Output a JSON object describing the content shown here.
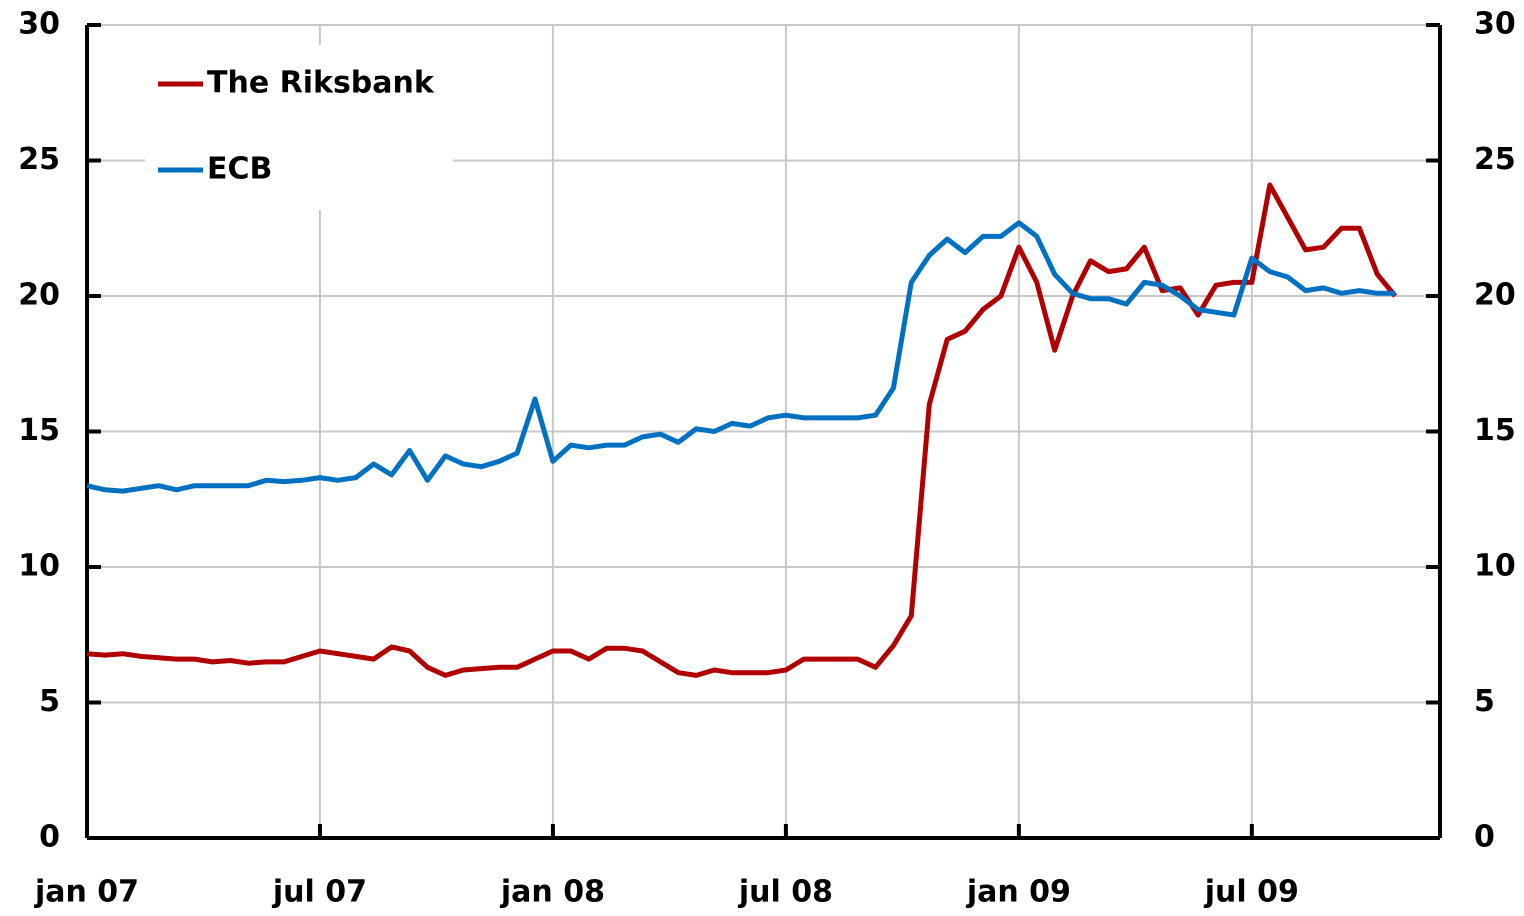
{
  "chart_data": {
    "type": "line",
    "categories": [
      "jan 07",
      null,
      null,
      null,
      null,
      null,
      null,
      null,
      null,
      null,
      null,
      null,
      null,
      "jul 07",
      null,
      null,
      null,
      null,
      null,
      null,
      null,
      null,
      null,
      null,
      null,
      null,
      "jan 08",
      null,
      null,
      null,
      null,
      null,
      null,
      null,
      null,
      null,
      null,
      null,
      null,
      "jul 08",
      null,
      null,
      null,
      null,
      null,
      null,
      null,
      null,
      null,
      null,
      null,
      null,
      "jan 09",
      null,
      null,
      null,
      null,
      null,
      null,
      null,
      null,
      null,
      null,
      null,
      null,
      "jul 09",
      null,
      null,
      null,
      null,
      null,
      null,
      null,
      null
    ],
    "series": [
      {
        "name": "The Riksbank",
        "color": "#b00000",
        "values": [
          6.8,
          6.75,
          6.8,
          6.7,
          6.65,
          6.6,
          6.6,
          6.5,
          6.55,
          6.45,
          6.5,
          6.5,
          6.7,
          6.9,
          6.8,
          6.7,
          6.6,
          7.05,
          6.9,
          6.3,
          6.0,
          6.2,
          6.25,
          6.3,
          6.3,
          6.6,
          6.9,
          6.9,
          6.6,
          7.0,
          7.0,
          6.9,
          6.5,
          6.1,
          6.0,
          6.2,
          6.1,
          6.1,
          6.1,
          6.2,
          6.6,
          6.6,
          6.6,
          6.6,
          6.3,
          7.1,
          8.2,
          16.0,
          18.4,
          18.7,
          19.5,
          20.0,
          21.8,
          20.5,
          18.0,
          20.0,
          21.3,
          20.9,
          21.0,
          21.8,
          20.2,
          20.3,
          19.3,
          20.4,
          20.5,
          20.5,
          24.1,
          22.9,
          21.7,
          21.8,
          22.5,
          22.5,
          20.8,
          20.0
        ]
      },
      {
        "name": "ECB",
        "color": "#0070c0",
        "values": [
          13.0,
          12.85,
          12.8,
          12.9,
          13.0,
          12.85,
          13.0,
          13.0,
          13.0,
          13.0,
          13.2,
          13.15,
          13.2,
          13.3,
          13.2,
          13.3,
          13.8,
          13.4,
          14.3,
          13.2,
          14.1,
          13.8,
          13.7,
          13.9,
          14.2,
          16.2,
          13.9,
          14.5,
          14.4,
          14.5,
          14.5,
          14.8,
          14.9,
          14.6,
          15.1,
          15.0,
          15.3,
          15.2,
          15.5,
          15.6,
          15.5,
          15.5,
          15.5,
          15.5,
          15.6,
          16.6,
          20.5,
          21.5,
          22.1,
          21.6,
          22.2,
          22.2,
          22.7,
          22.2,
          20.8,
          20.1,
          19.9,
          19.9,
          19.7,
          20.5,
          20.4,
          20.0,
          19.5,
          19.4,
          19.3,
          21.4,
          20.9,
          20.7,
          20.2,
          20.3,
          20.1,
          20.2,
          20.1,
          20.1
        ]
      }
    ],
    "ylim": [
      0,
      30
    ],
    "yticks": [
      0,
      5,
      10,
      15,
      20,
      25,
      30
    ],
    "y2lim": [
      0,
      30
    ],
    "y2ticks": [
      0,
      5,
      10,
      15,
      20,
      25,
      30
    ],
    "grid": true,
    "legend": "upper left"
  }
}
